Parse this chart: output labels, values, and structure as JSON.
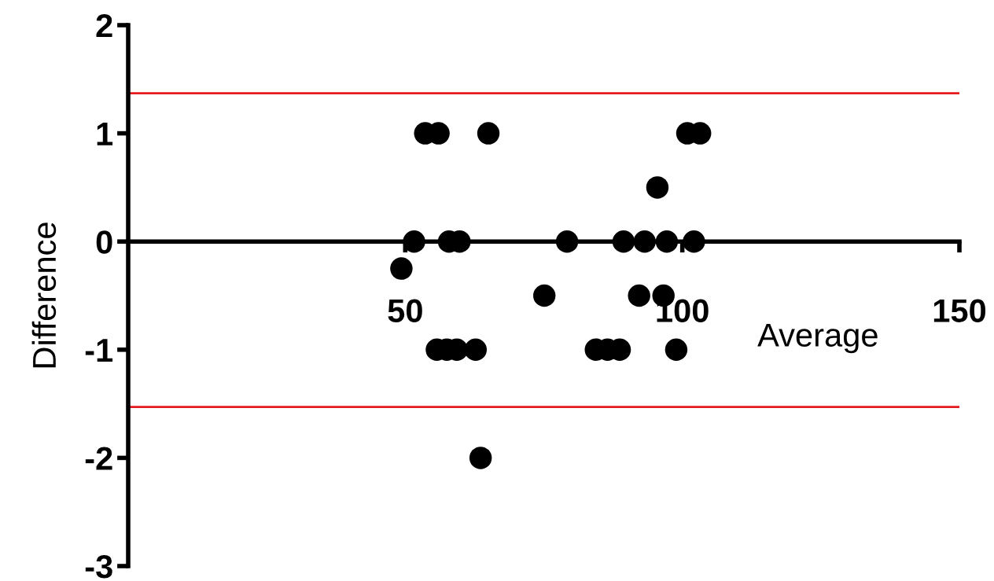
{
  "chart_data": {
    "type": "scatter",
    "xlabel": "Average",
    "ylabel": "Difference",
    "x": [
      53.6,
      56.0,
      65.0,
      100.9,
      103.2,
      95.5,
      51.6,
      57.9,
      59.8,
      79.2,
      89.4,
      93.2,
      97.2,
      102.1,
      49.3,
      75.1,
      92.2,
      96.6,
      55.7,
      57.5,
      59.3,
      62.7,
      84.4,
      86.5,
      88.7,
      98.9,
      63.6
    ],
    "values": [
      1,
      1,
      1,
      1,
      1,
      0.5,
      0,
      0,
      0,
      0,
      0,
      0,
      0,
      0,
      -0.25,
      -0.5,
      -0.5,
      -0.5,
      -1,
      -1,
      -1,
      -1,
      -1,
      -1,
      -1,
      -1,
      -2
    ],
    "color": "#000000",
    "marker": "circle",
    "xlim": [
      0,
      150
    ],
    "xticks": [
      50,
      100,
      150
    ],
    "ylim": [
      -3,
      2
    ],
    "yticks": [
      -3,
      -2,
      -1,
      0,
      1,
      2
    ],
    "ref_lines": [
      {
        "axis": "y",
        "value": 1.37,
        "color": "#e41a1c"
      },
      {
        "axis": "y",
        "value": -1.53,
        "color": "#e41a1c"
      }
    ],
    "grid": false
  }
}
